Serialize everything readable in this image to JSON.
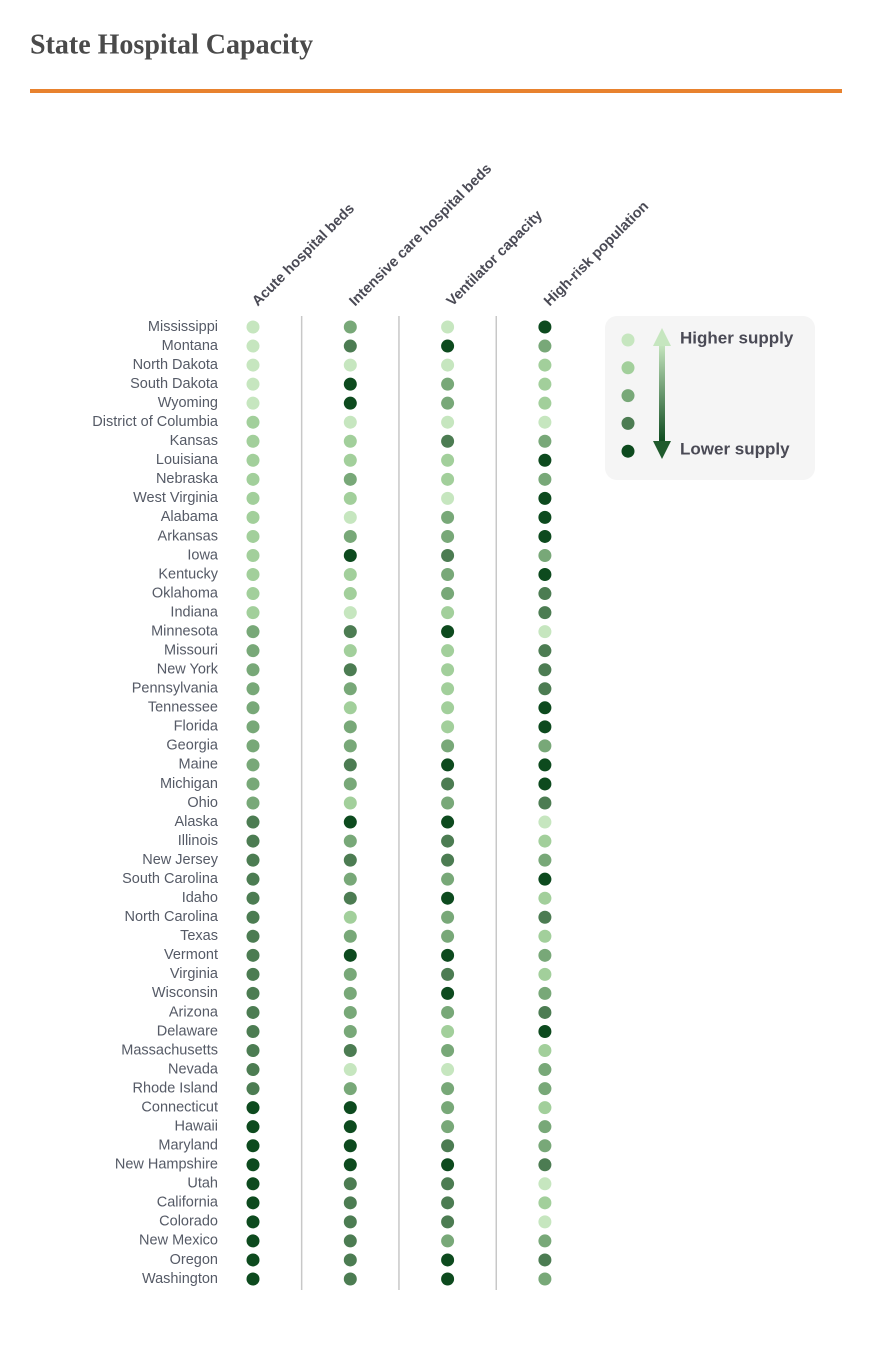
{
  "chart_data": {
    "type": "dot-matrix",
    "title": "State Hospital Capacity",
    "categories": [
      "Mississippi",
      "Montana",
      "North Dakota",
      "South Dakota",
      "Wyoming",
      "District of Columbia",
      "Kansas",
      "Louisiana",
      "Nebraska",
      "West Virginia",
      "Alabama",
      "Arkansas",
      "Iowa",
      "Kentucky",
      "Oklahoma",
      "Indiana",
      "Minnesota",
      "Missouri",
      "New York",
      "Pennsylvania",
      "Tennessee",
      "Florida",
      "Georgia",
      "Maine",
      "Michigan",
      "Ohio",
      "Alaska",
      "Illinois",
      "New Jersey",
      "South Carolina",
      "Idaho",
      "North Carolina",
      "Texas",
      "Vermont",
      "Virginia",
      "Wisconsin",
      "Arizona",
      "Delaware",
      "Massachusetts",
      "Nevada",
      "Rhode Island",
      "Connecticut",
      "Hawaii",
      "Maryland",
      "New Hampshire",
      "Utah",
      "California",
      "Colorado",
      "New Mexico",
      "Oregon",
      "Washington"
    ],
    "series": [
      {
        "name": "Acute hospital beds",
        "values": [
          1,
          1,
          1,
          1,
          1,
          2,
          2,
          2,
          2,
          2,
          2,
          2,
          2,
          2,
          2,
          2,
          3,
          3,
          3,
          3,
          3,
          3,
          3,
          3,
          3,
          3,
          4,
          4,
          4,
          4,
          4,
          4,
          4,
          4,
          4,
          4,
          4,
          4,
          4,
          4,
          4,
          5,
          5,
          5,
          5,
          5,
          5,
          5,
          5,
          5,
          5
        ]
      },
      {
        "name": "Intensive care hospital beds",
        "values": [
          3,
          4,
          1,
          5,
          5,
          1,
          2,
          2,
          3,
          2,
          1,
          3,
          5,
          2,
          2,
          1,
          4,
          2,
          4,
          3,
          2,
          3,
          3,
          4,
          3,
          2,
          5,
          3,
          4,
          3,
          4,
          2,
          3,
          5,
          3,
          3,
          3,
          3,
          4,
          1,
          3,
          5,
          5,
          5,
          5,
          4,
          4,
          4,
          4,
          4,
          4
        ]
      },
      {
        "name": "Ventilator capacity",
        "values": [
          1,
          5,
          1,
          3,
          3,
          1,
          4,
          2,
          2,
          1,
          3,
          3,
          4,
          3,
          3,
          2,
          5,
          2,
          2,
          2,
          2,
          2,
          3,
          5,
          4,
          3,
          5,
          4,
          4,
          3,
          5,
          3,
          3,
          5,
          4,
          5,
          3,
          2,
          3,
          1,
          3,
          3,
          3,
          4,
          5,
          4,
          4,
          4,
          3,
          5,
          5
        ]
      },
      {
        "name": "High-risk population",
        "values": [
          5,
          3,
          2,
          2,
          2,
          1,
          3,
          5,
          3,
          5,
          5,
          5,
          3,
          5,
          4,
          4,
          1,
          4,
          4,
          4,
          5,
          5,
          3,
          5,
          5,
          4,
          1,
          2,
          3,
          5,
          2,
          4,
          2,
          3,
          2,
          3,
          4,
          5,
          2,
          3,
          3,
          2,
          3,
          3,
          4,
          1,
          2,
          1,
          3,
          4,
          3
        ]
      }
    ],
    "levels": [
      1,
      2,
      3,
      4,
      5
    ],
    "colors": [
      "#c6e6bf",
      "#a2cf9b",
      "#78a878",
      "#4c7c52",
      "#0d4a1e"
    ],
    "legend_labels": [
      "Higher supply",
      "Lower supply"
    ]
  }
}
